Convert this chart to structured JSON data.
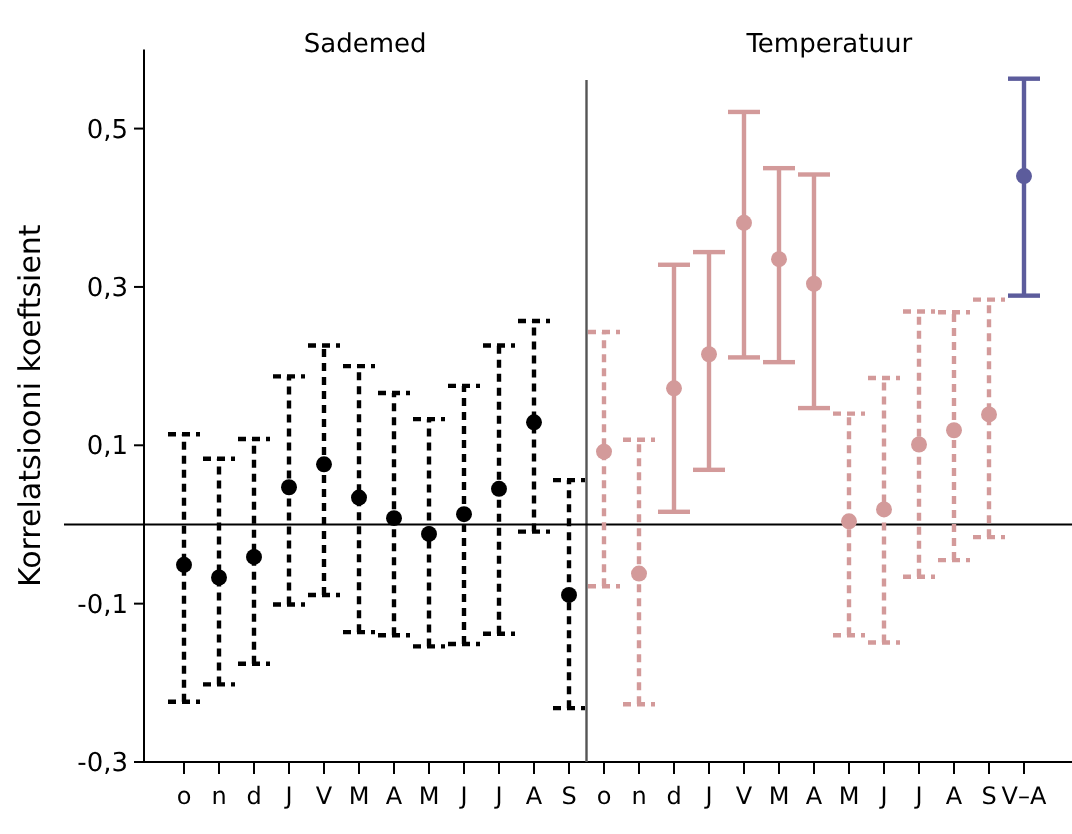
{
  "chart_data": {
    "type": "scatter",
    "ylabel": "Korrelatsiooni koeftsient",
    "annotations": [
      "Sademed",
      "Temperatuur"
    ],
    "categories": [
      "o",
      "n",
      "d",
      "J",
      "V",
      "M",
      "A",
      "M",
      "J",
      "J",
      "A",
      "S",
      "o",
      "n",
      "d",
      "J",
      "V",
      "M",
      "A",
      "M",
      "J",
      "J",
      "A",
      "S",
      "V–A"
    ],
    "ylim": [
      -0.3,
      0.6
    ],
    "yticks": [
      {
        "value": -0.3,
        "label": "-0,3"
      },
      {
        "value": -0.1,
        "label": "-0,1"
      },
      {
        "value": 0.1,
        "label": "0,1"
      },
      {
        "value": 0.3,
        "label": "0,3"
      },
      {
        "value": 0.5,
        "label": "0,5"
      }
    ],
    "ref_lines": [
      {
        "axis": "y",
        "value": 0,
        "color": "#000000"
      }
    ],
    "marker": "circle",
    "grid": false,
    "series": [
      {
        "color": "#000000",
        "line_style": "dashed",
        "values": [
          -0.051,
          -0.067,
          -0.041,
          0.047,
          0.076,
          0.034,
          0.008,
          -0.012,
          0.013,
          0.045,
          0.129,
          -0.089,
          null,
          null,
          null,
          null,
          null,
          null,
          null,
          null,
          null,
          null,
          null,
          null,
          null
        ],
        "errors": [
          [
            -0.224,
            0.114
          ],
          [
            -0.202,
            0.083
          ],
          [
            -0.176,
            0.108
          ],
          [
            -0.101,
            0.187
          ],
          [
            -0.089,
            0.226
          ],
          [
            -0.136,
            0.2
          ],
          [
            -0.14,
            0.166
          ],
          [
            -0.154,
            0.133
          ],
          [
            -0.151,
            0.175
          ],
          [
            -0.138,
            0.226
          ],
          [
            -0.009,
            0.257
          ],
          [
            -0.232,
            0.056
          ],
          null,
          null,
          null,
          null,
          null,
          null,
          null,
          null,
          null,
          null,
          null,
          null,
          null
        ]
      },
      {
        "color": "#d39a9a",
        "line_style": "dashed",
        "values": [
          null,
          null,
          null,
          null,
          null,
          null,
          null,
          null,
          null,
          null,
          null,
          null,
          0.092,
          -0.062,
          null,
          null,
          null,
          null,
          null,
          0.004,
          0.019,
          0.101,
          0.119,
          0.139,
          null
        ],
        "errors": [
          null,
          null,
          null,
          null,
          null,
          null,
          null,
          null,
          null,
          null,
          null,
          null,
          [
            -0.078,
            0.243
          ],
          [
            -0.227,
            0.107
          ],
          null,
          null,
          null,
          null,
          null,
          [
            -0.14,
            0.14
          ],
          [
            -0.149,
            0.185
          ],
          [
            -0.066,
            0.269
          ],
          [
            -0.045,
            0.268
          ],
          [
            -0.016,
            0.284
          ],
          null
        ]
      },
      {
        "color": "#d39a9a",
        "line_style": "solid",
        "values": [
          null,
          null,
          null,
          null,
          null,
          null,
          null,
          null,
          null,
          null,
          null,
          null,
          null,
          null,
          0.172,
          0.215,
          0.381,
          0.335,
          0.304,
          null,
          null,
          null,
          null,
          null,
          null
        ],
        "errors": [
          null,
          null,
          null,
          null,
          null,
          null,
          null,
          null,
          null,
          null,
          null,
          null,
          null,
          null,
          [
            0.016,
            0.328
          ],
          [
            0.069,
            0.344
          ],
          [
            0.211,
            0.521
          ],
          [
            0.205,
            0.45
          ],
          [
            0.147,
            0.442
          ],
          null,
          null,
          null,
          null,
          null,
          null
        ]
      },
      {
        "color": "#5c5c9c",
        "line_style": "solid",
        "values": [
          null,
          null,
          null,
          null,
          null,
          null,
          null,
          null,
          null,
          null,
          null,
          null,
          null,
          null,
          null,
          null,
          null,
          null,
          null,
          null,
          null,
          null,
          null,
          null,
          0.44
        ],
        "errors": [
          null,
          null,
          null,
          null,
          null,
          null,
          null,
          null,
          null,
          null,
          null,
          null,
          null,
          null,
          null,
          null,
          null,
          null,
          null,
          null,
          null,
          null,
          null,
          null,
          [
            0.289,
            0.563
          ]
        ]
      }
    ]
  }
}
